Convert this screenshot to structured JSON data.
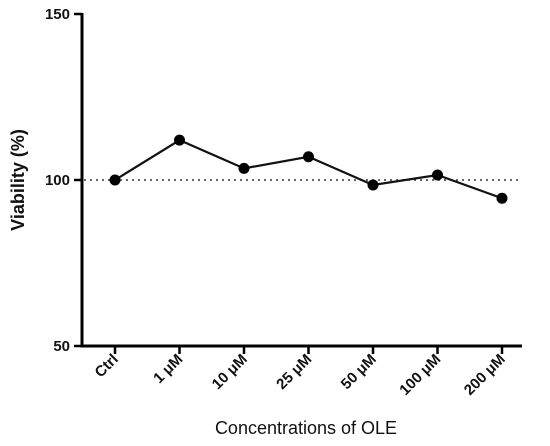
{
  "chart_data": {
    "type": "line",
    "title": "",
    "xlabel": "Concentrations of OLE",
    "ylabel": "Viability (%)",
    "categories": [
      "Ctrl",
      "1 μM",
      "10 μM",
      "25 μM",
      "50 μM",
      "100 μM",
      "200 μM"
    ],
    "series": [
      {
        "values": [
          100,
          112,
          103.5,
          107,
          98.5,
          101.5,
          94.5
        ]
      }
    ],
    "ylim": [
      50,
      150
    ],
    "yticks": [
      50,
      100,
      150
    ],
    "reference_line": {
      "y": 100,
      "style": "dotted"
    },
    "grid": false,
    "legend": "none",
    "colors": {
      "line": "#111111",
      "marker": "#000000",
      "axis": "#000000"
    }
  }
}
